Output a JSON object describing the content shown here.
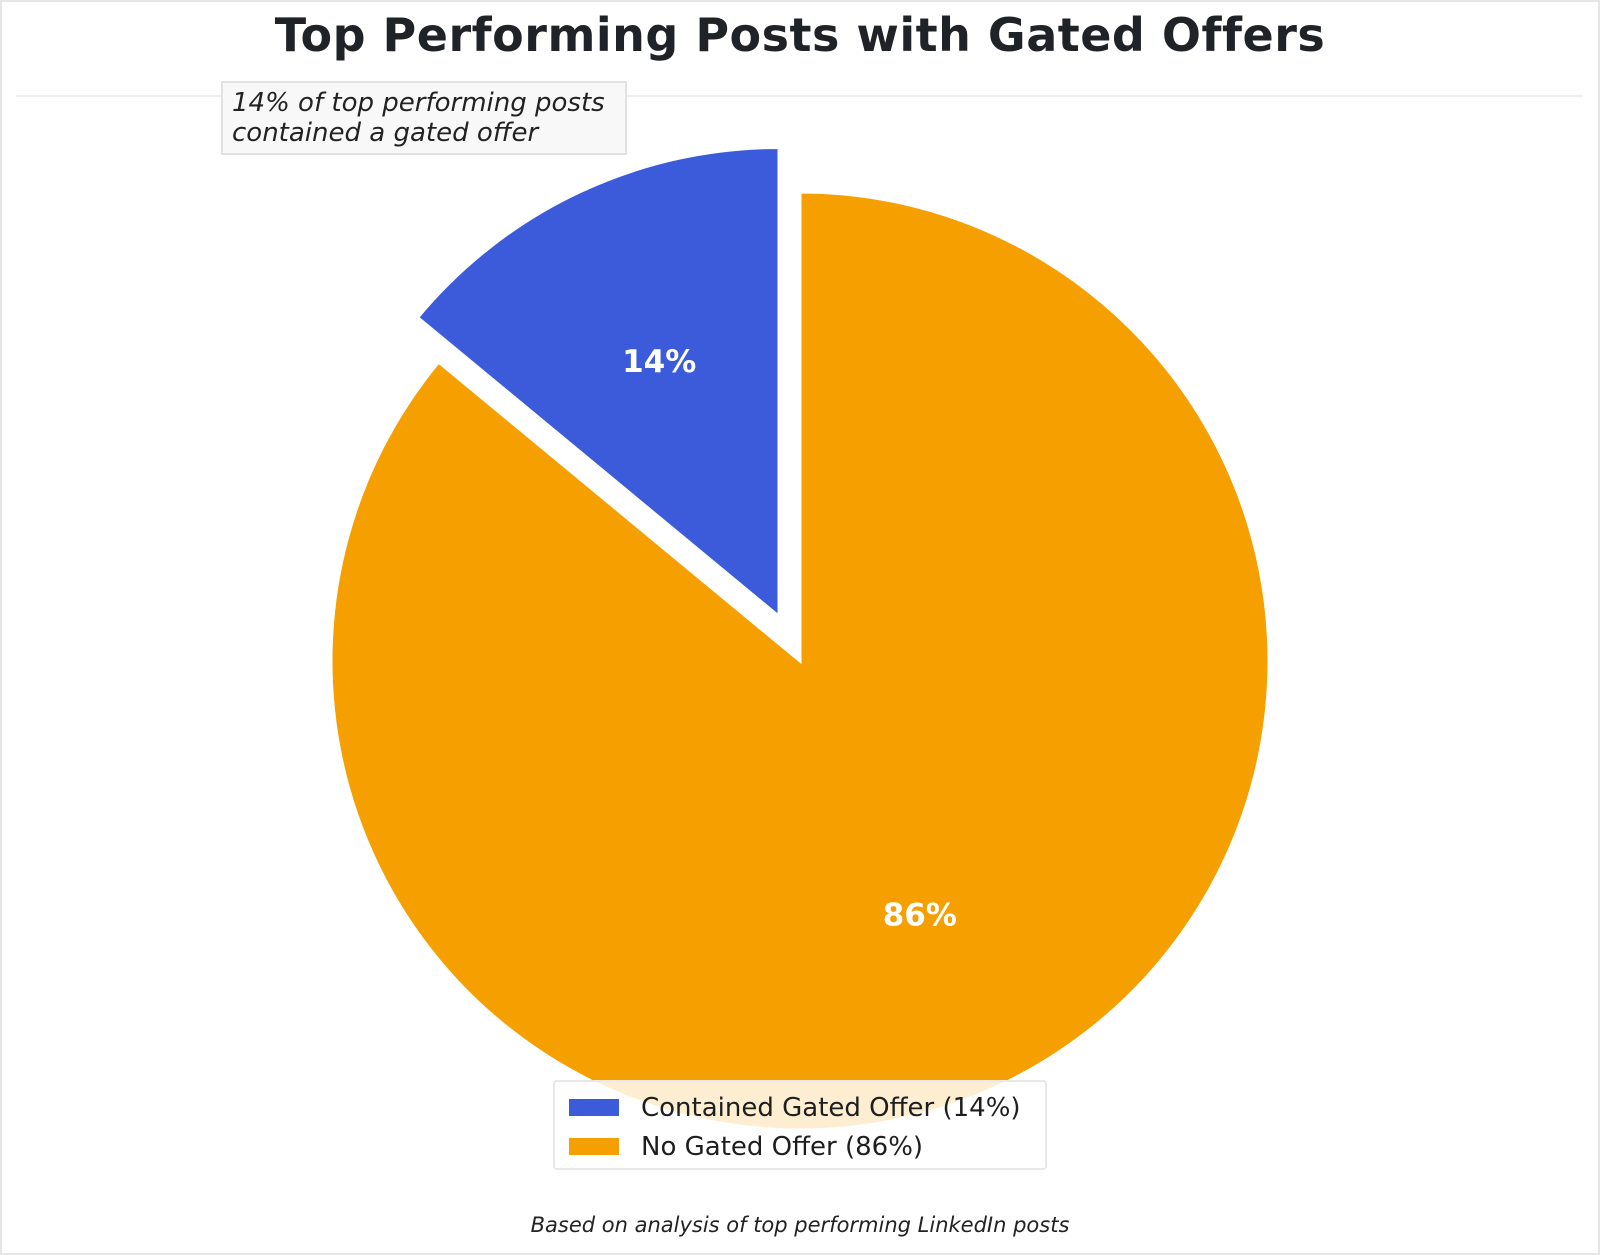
{
  "chart_data": {
    "type": "pie",
    "title": "Top Performing Posts with Gated Offers",
    "annotation": "14% of top performing posts\ncontained a gated offer",
    "caption": "Based on analysis of top performing LinkedIn posts",
    "slices": [
      {
        "label": "Contained Gated Offer (14%)",
        "value": 14,
        "display": "14%",
        "color": "#3b5bdb",
        "exploded": true
      },
      {
        "label": "No Gated Offer (86%)",
        "value": 86,
        "display": "86%",
        "color": "#f59f00",
        "exploded": false
      }
    ],
    "start_angle": "top",
    "direction": "counter-clockwise",
    "legend_position": "bottom-center"
  }
}
